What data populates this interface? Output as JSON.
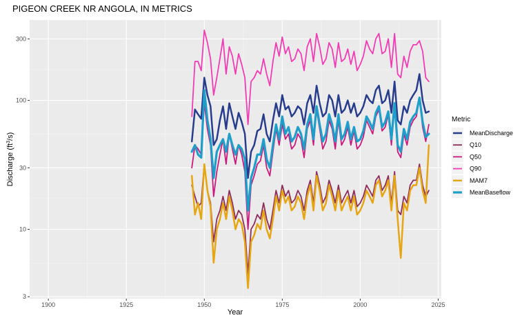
{
  "chart_data": {
    "type": "line",
    "title": "PIGEON CREEK NR ANGOLA, IN  METRICS",
    "xlabel": "Year",
    "ylabel": "Discharge (ft³/s)",
    "ylabel_parts": [
      "Discharge (ft",
      "3",
      "/s)"
    ],
    "y_scale": "log",
    "xlim": [
      1894,
      2026
    ],
    "ylim": [
      2.9,
      420
    ],
    "x_ticks": [
      1900,
      1925,
      1950,
      1975,
      2000,
      2025
    ],
    "x_tick_labels": [
      "1900",
      "1925",
      "1950",
      "1975",
      "2000",
      "2025"
    ],
    "y_ticks": [
      3,
      10,
      30,
      100,
      300
    ],
    "y_tick_labels": [
      "3",
      "10",
      "30",
      "100",
      "300"
    ],
    "grid": true,
    "legend": {
      "title": "Metric",
      "position": "right"
    },
    "series": [
      {
        "name": "MeanDischarge",
        "color": "#283c8c",
        "width": 2.5,
        "x": [
          1946,
          1947,
          1948,
          1949,
          1950,
          1951,
          1952,
          1953,
          1954,
          1955,
          1956,
          1957,
          1958,
          1959,
          1960,
          1961,
          1962,
          1963,
          1964,
          1965,
          1966,
          1967,
          1968,
          1969,
          1970,
          1971,
          1972,
          1973,
          1974,
          1975,
          1976,
          1977,
          1978,
          1979,
          1980,
          1981,
          1982,
          1983,
          1984,
          1985,
          1986,
          1987,
          1988,
          1989,
          1990,
          1991,
          1992,
          1993,
          1994,
          1995,
          1996,
          1997,
          1998,
          1999,
          2000,
          2001,
          2002,
          2003,
          2004,
          2005,
          2006,
          2007,
          2008,
          2009,
          2010,
          2011,
          2012,
          2013,
          2014,
          2015,
          2016,
          2017,
          2018,
          2019,
          2020,
          2021,
          2022
        ],
        "values": [
          48,
          85,
          78,
          72,
          150,
          110,
          90,
          45,
          50,
          70,
          90,
          60,
          95,
          75,
          60,
          80,
          68,
          55,
          25,
          40,
          45,
          58,
          60,
          78,
          55,
          48,
          70,
          95,
          75,
          110,
          85,
          90,
          75,
          80,
          90,
          85,
          65,
          95,
          110,
          80,
          130,
          95,
          75,
          80,
          110,
          100,
          75,
          110,
          80,
          85,
          100,
          80,
          95,
          75,
          80,
          90,
          110,
          100,
          95,
          120,
          130,
          95,
          100,
          120,
          80,
          140,
          70,
          65,
          90,
          80,
          100,
          110,
          120,
          160,
          100,
          80,
          82
        ]
      },
      {
        "name": "Q10",
        "color": "#8c2d5a",
        "width": 1.8,
        "x": [
          1946,
          1947,
          1948,
          1949,
          1950,
          1951,
          1952,
          1953,
          1954,
          1955,
          1956,
          1957,
          1958,
          1959,
          1960,
          1961,
          1962,
          1963,
          1964,
          1965,
          1966,
          1967,
          1968,
          1969,
          1970,
          1971,
          1972,
          1973,
          1974,
          1975,
          1976,
          1977,
          1978,
          1979,
          1980,
          1981,
          1982,
          1983,
          1984,
          1985,
          1986,
          1987,
          1988,
          1989,
          1990,
          1991,
          1992,
          1993,
          1994,
          1995,
          1996,
          1997,
          1998,
          1999,
          2000,
          2001,
          2002,
          2003,
          2004,
          2005,
          2006,
          2007,
          2008,
          2009,
          2010,
          2011,
          2012,
          2013,
          2014,
          2015,
          2016,
          2017,
          2018,
          2019,
          2020,
          2021,
          2022
        ],
        "values": [
          22,
          18,
          15,
          16,
          32,
          20,
          16,
          8,
          12,
          14,
          18,
          14,
          20,
          16,
          12,
          14,
          13,
          10,
          4.5,
          10,
          11,
          13,
          12,
          16,
          12,
          10,
          14,
          20,
          16,
          22,
          18,
          20,
          16,
          17,
          20,
          18,
          14,
          20,
          24,
          16,
          28,
          22,
          16,
          18,
          24,
          20,
          16,
          22,
          16,
          18,
          20,
          16,
          20,
          15,
          16,
          18,
          22,
          20,
          18,
          24,
          26,
          20,
          22,
          26,
          16,
          28,
          14,
          13,
          18,
          16,
          22,
          24,
          24,
          32,
          22,
          18,
          20
        ]
      },
      {
        "name": "Q50",
        "color": "#c8197c",
        "width": 1.8,
        "x": [
          1946,
          1947,
          1948,
          1949,
          1950,
          1951,
          1952,
          1953,
          1954,
          1955,
          1956,
          1957,
          1958,
          1959,
          1960,
          1961,
          1962,
          1963,
          1964,
          1965,
          1966,
          1967,
          1968,
          1969,
          1970,
          1971,
          1972,
          1973,
          1974,
          1975,
          1976,
          1977,
          1978,
          1979,
          1980,
          1981,
          1982,
          1983,
          1984,
          1985,
          1986,
          1987,
          1988,
          1989,
          1990,
          1991,
          1992,
          1993,
          1994,
          1995,
          1996,
          1997,
          1998,
          1999,
          2000,
          2001,
          2002,
          2003,
          2004,
          2005,
          2006,
          2007,
          2008,
          2009,
          2010,
          2011,
          2012,
          2013,
          2014,
          2015,
          2016,
          2017,
          2018,
          2019,
          2020,
          2021,
          2022
        ],
        "values": [
          30,
          45,
          42,
          38,
          95,
          60,
          45,
          18,
          28,
          38,
          50,
          32,
          55,
          42,
          32,
          45,
          38,
          28,
          10,
          22,
          26,
          32,
          34,
          45,
          30,
          26,
          40,
          60,
          45,
          65,
          50,
          55,
          42,
          45,
          55,
          50,
          36,
          60,
          70,
          45,
          85,
          60,
          42,
          48,
          70,
          60,
          42,
          70,
          45,
          50,
          62,
          45,
          58,
          42,
          45,
          52,
          70,
          62,
          55,
          75,
          85,
          58,
          62,
          78,
          45,
          90,
          40,
          36,
          55,
          45,
          62,
          70,
          75,
          105,
          62,
          48,
          65
        ]
      },
      {
        "name": "Q90",
        "color": "#f03cb4",
        "width": 1.8,
        "x": [
          1946,
          1947,
          1948,
          1949,
          1950,
          1951,
          1952,
          1953,
          1954,
          1955,
          1956,
          1957,
          1958,
          1959,
          1960,
          1961,
          1962,
          1963,
          1964,
          1965,
          1966,
          1967,
          1968,
          1969,
          1970,
          1971,
          1972,
          1973,
          1974,
          1975,
          1976,
          1977,
          1978,
          1979,
          1980,
          1981,
          1982,
          1983,
          1984,
          1985,
          1986,
          1987,
          1988,
          1989,
          1990,
          1991,
          1992,
          1993,
          1994,
          1995,
          1996,
          1997,
          1998,
          1999,
          2000,
          2001,
          2002,
          2003,
          2004,
          2005,
          2006,
          2007,
          2008,
          2009,
          2010,
          2011,
          2012,
          2013,
          2014,
          2015,
          2016,
          2017,
          2018,
          2019,
          2020,
          2021,
          2022
        ],
        "values": [
          75,
          200,
          200,
          170,
          350,
          280,
          210,
          110,
          150,
          210,
          300,
          160,
          260,
          220,
          160,
          230,
          190,
          150,
          65,
          140,
          150,
          170,
          160,
          210,
          160,
          130,
          200,
          280,
          220,
          310,
          230,
          260,
          200,
          210,
          250,
          230,
          170,
          260,
          300,
          200,
          330,
          260,
          190,
          210,
          280,
          250,
          180,
          280,
          200,
          210,
          250,
          190,
          240,
          170,
          190,
          220,
          290,
          250,
          230,
          300,
          330,
          230,
          240,
          300,
          180,
          330,
          160,
          150,
          220,
          180,
          240,
          270,
          270,
          290,
          240,
          150,
          140
        ]
      },
      {
        "name": "MAM7",
        "color": "#e6a614",
        "width": 2.5,
        "x": [
          1946,
          1947,
          1948,
          1949,
          1950,
          1951,
          1952,
          1953,
          1954,
          1955,
          1956,
          1957,
          1958,
          1959,
          1960,
          1961,
          1962,
          1963,
          1964,
          1965,
          1966,
          1967,
          1968,
          1969,
          1970,
          1971,
          1972,
          1973,
          1974,
          1975,
          1976,
          1977,
          1978,
          1979,
          1980,
          1981,
          1982,
          1983,
          1984,
          1985,
          1986,
          1987,
          1988,
          1989,
          1990,
          1991,
          1992,
          1993,
          1994,
          1995,
          1996,
          1997,
          1998,
          1999,
          2000,
          2001,
          2002,
          2003,
          2004,
          2005,
          2006,
          2007,
          2008,
          2009,
          2010,
          2011,
          2012,
          2013,
          2014,
          2015,
          2016,
          2017,
          2018,
          2019,
          2020,
          2021,
          2022
        ],
        "values": [
          26,
          13,
          16,
          12,
          32,
          20,
          15,
          5.5,
          10,
          12,
          16,
          12,
          18,
          14,
          10,
          12,
          11,
          8,
          3.5,
          8,
          9,
          11,
          10,
          14,
          10,
          8.5,
          12,
          18,
          14,
          20,
          16,
          18,
          14,
          15,
          18,
          16,
          12,
          18,
          22,
          14,
          26,
          20,
          14,
          16,
          22,
          18,
          14,
          20,
          14,
          16,
          18,
          14,
          18,
          13,
          14,
          16,
          20,
          18,
          16,
          22,
          24,
          18,
          20,
          24,
          14,
          26,
          12,
          6,
          16,
          14,
          20,
          22,
          22,
          30,
          20,
          16,
          45
        ]
      },
      {
        "name": "MeanBaseflow",
        "color": "#1e9ec8",
        "width": 3.2,
        "x": [
          1946,
          1947,
          1948,
          1949,
          1950,
          1951,
          1952,
          1953,
          1954,
          1955,
          1956,
          1957,
          1958,
          1959,
          1960,
          1961,
          1962,
          1963,
          1964,
          1965,
          1966,
          1967,
          1968,
          1969,
          1970,
          1971,
          1972,
          1973,
          1974,
          1975,
          1976,
          1977,
          1978,
          1979,
          1980,
          1981,
          1982,
          1983,
          1984,
          1985,
          1986,
          1987,
          1988,
          1989,
          1990,
          1991,
          1992,
          1993,
          1994,
          1995,
          1996,
          1997,
          1998,
          1999,
          2000,
          2001,
          2002,
          2003,
          2004,
          2005,
          2006,
          2007,
          2008,
          2009,
          2010,
          2011,
          2012,
          2013,
          2014,
          2015,
          2016,
          2017,
          2018,
          2019,
          2020,
          2021,
          2022
        ],
        "values": [
          40,
          45,
          38,
          36,
          120,
          70,
          50,
          25,
          40,
          45,
          50,
          40,
          55,
          45,
          38,
          45,
          42,
          35,
          14,
          25,
          30,
          38,
          38,
          50,
          35,
          30,
          45,
          65,
          50,
          75,
          55,
          62,
          48,
          52,
          62,
          55,
          42,
          65,
          78,
          50,
          90,
          65,
          48,
          55,
          78,
          65,
          48,
          78,
          50,
          55,
          68,
          50,
          62,
          48,
          50,
          58,
          75,
          68,
          60,
          80,
          90,
          62,
          68,
          82,
          50,
          95,
          45,
          40,
          60,
          50,
          68,
          75,
          80,
          105,
          68,
          52,
          55
        ]
      }
    ]
  }
}
